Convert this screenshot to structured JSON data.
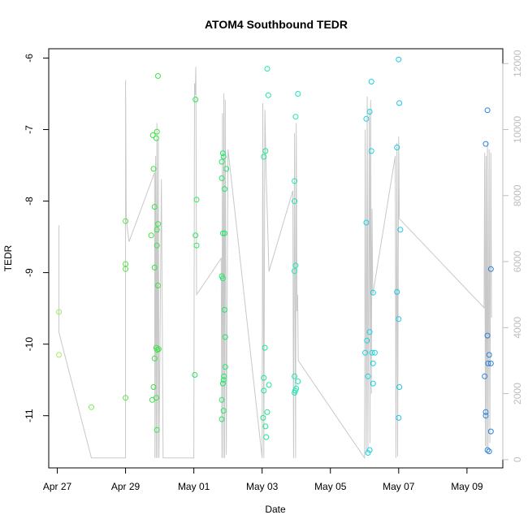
{
  "chart_data": {
    "type": "scatter",
    "title": "ATOM4 Southbound TEDR",
    "xlabel": "Date",
    "ylabel": "TEDR",
    "x_ticks": [
      "Apr 27",
      "Apr 29",
      "May 01",
      "May 03",
      "May 05",
      "May 07",
      "May 09"
    ],
    "x_tick_days": [
      0,
      2,
      4,
      6,
      8,
      10,
      12
    ],
    "xlim_days": [
      -0.25,
      13.05
    ],
    "y_ticks": [
      "-6",
      "-7",
      "-8",
      "-9",
      "-10",
      "-11"
    ],
    "y_tick_values": [
      -6,
      -7,
      -8,
      -9,
      -10,
      -11
    ],
    "ylim": [
      -11.73,
      -5.87
    ],
    "y2_ticks": [
      "0",
      "2000",
      "4000",
      "6000",
      "8000",
      "10000",
      "12000"
    ],
    "y2_tick_values": [
      0,
      2000,
      4000,
      6000,
      8000,
      10000,
      12000
    ],
    "y2lim": [
      -250,
      12450
    ],
    "grid": false,
    "colors": {
      "line": "#c8c8c8",
      "axis": "#000000",
      "right_axis": "#bdbdbd",
      "point_gradient": [
        "#9ef15a",
        "#3be43b",
        "#20e86c",
        "#18e6d0",
        "#19c5e8",
        "#2a7fd9"
      ]
    },
    "points": [
      {
        "x": 0.05,
        "y": -9.55
      },
      {
        "x": 0.05,
        "y": -10.15
      },
      {
        "x": 1.0,
        "y": -10.88
      },
      {
        "x": 2.0,
        "y": -8.28
      },
      {
        "x": 2.0,
        "y": -8.88
      },
      {
        "x": 2.0,
        "y": -8.95
      },
      {
        "x": 2.0,
        "y": -10.75
      },
      {
        "x": 2.75,
        "y": -8.48
      },
      {
        "x": 2.8,
        "y": -7.08
      },
      {
        "x": 2.82,
        "y": -7.55
      },
      {
        "x": 2.85,
        "y": -8.08
      },
      {
        "x": 2.85,
        "y": -8.93
      },
      {
        "x": 2.85,
        "y": -10.2
      },
      {
        "x": 2.82,
        "y": -10.6
      },
      {
        "x": 2.78,
        "y": -10.78
      },
      {
        "x": 2.9,
        "y": -7.12
      },
      {
        "x": 2.92,
        "y": -7.03
      },
      {
        "x": 2.95,
        "y": -6.25
      },
      {
        "x": 2.92,
        "y": -8.4
      },
      {
        "x": 2.95,
        "y": -8.32
      },
      {
        "x": 2.92,
        "y": -8.62
      },
      {
        "x": 2.95,
        "y": -9.18
      },
      {
        "x": 2.9,
        "y": -10.05
      },
      {
        "x": 2.93,
        "y": -10.08
      },
      {
        "x": 2.97,
        "y": -10.07
      },
      {
        "x": 2.9,
        "y": -10.75
      },
      {
        "x": 2.92,
        "y": -11.2
      },
      {
        "x": 4.05,
        "y": -6.58
      },
      {
        "x": 4.08,
        "y": -7.98
      },
      {
        "x": 4.05,
        "y": -8.48
      },
      {
        "x": 4.08,
        "y": -8.62
      },
      {
        "x": 4.03,
        "y": -10.43
      },
      {
        "x": 4.85,
        "y": -7.33
      },
      {
        "x": 4.82,
        "y": -7.45
      },
      {
        "x": 4.87,
        "y": -7.38
      },
      {
        "x": 4.82,
        "y": -7.68
      },
      {
        "x": 4.95,
        "y": -7.55
      },
      {
        "x": 4.9,
        "y": -7.83
      },
      {
        "x": 4.85,
        "y": -8.45
      },
      {
        "x": 4.9,
        "y": -8.45
      },
      {
        "x": 4.82,
        "y": -9.05
      },
      {
        "x": 4.85,
        "y": -9.08
      },
      {
        "x": 4.9,
        "y": -9.52
      },
      {
        "x": 4.92,
        "y": -9.9
      },
      {
        "x": 4.92,
        "y": -10.32
      },
      {
        "x": 4.88,
        "y": -10.45
      },
      {
        "x": 4.87,
        "y": -10.5
      },
      {
        "x": 4.85,
        "y": -10.55
      },
      {
        "x": 4.82,
        "y": -10.78
      },
      {
        "x": 4.87,
        "y": -10.93
      },
      {
        "x": 4.82,
        "y": -11.05
      },
      {
        "x": 6.15,
        "y": -6.15
      },
      {
        "x": 6.18,
        "y": -6.52
      },
      {
        "x": 6.1,
        "y": -7.3
      },
      {
        "x": 6.05,
        "y": -7.38
      },
      {
        "x": 6.08,
        "y": -10.05
      },
      {
        "x": 6.05,
        "y": -10.47
      },
      {
        "x": 6.2,
        "y": -10.57
      },
      {
        "x": 6.05,
        "y": -10.65
      },
      {
        "x": 6.15,
        "y": -10.95
      },
      {
        "x": 6.03,
        "y": -11.03
      },
      {
        "x": 6.1,
        "y": -11.15
      },
      {
        "x": 6.12,
        "y": -11.3
      },
      {
        "x": 7.05,
        "y": -6.5
      },
      {
        "x": 6.98,
        "y": -6.82
      },
      {
        "x": 6.95,
        "y": -7.72
      },
      {
        "x": 6.95,
        "y": -8.0
      },
      {
        "x": 6.98,
        "y": -8.9
      },
      {
        "x": 6.95,
        "y": -8.98
      },
      {
        "x": 6.95,
        "y": -10.45
      },
      {
        "x": 7.05,
        "y": -10.52
      },
      {
        "x": 7.0,
        "y": -10.62
      },
      {
        "x": 6.97,
        "y": -10.65
      },
      {
        "x": 6.95,
        "y": -10.68
      },
      {
        "x": 10.0,
        "y": -6.02
      },
      {
        "x": 9.2,
        "y": -6.33
      },
      {
        "x": 9.15,
        "y": -6.75
      },
      {
        "x": 9.05,
        "y": -6.85
      },
      {
        "x": 10.02,
        "y": -6.63
      },
      {
        "x": 9.2,
        "y": -7.3
      },
      {
        "x": 9.95,
        "y": -7.25
      },
      {
        "x": 9.05,
        "y": -8.3
      },
      {
        "x": 10.05,
        "y": -8.4
      },
      {
        "x": 9.25,
        "y": -9.28
      },
      {
        "x": 9.95,
        "y": -9.27
      },
      {
        "x": 10.0,
        "y": -9.65
      },
      {
        "x": 9.15,
        "y": -9.83
      },
      {
        "x": 9.07,
        "y": -9.95
      },
      {
        "x": 9.02,
        "y": -10.12
      },
      {
        "x": 9.22,
        "y": -10.12
      },
      {
        "x": 9.3,
        "y": -10.12
      },
      {
        "x": 9.25,
        "y": -10.27
      },
      {
        "x": 9.1,
        "y": -10.45
      },
      {
        "x": 9.25,
        "y": -10.55
      },
      {
        "x": 10.02,
        "y": -10.6
      },
      {
        "x": 10.0,
        "y": -11.03
      },
      {
        "x": 9.15,
        "y": -11.48
      },
      {
        "x": 9.1,
        "y": -11.52
      },
      {
        "x": 12.6,
        "y": -6.73
      },
      {
        "x": 12.55,
        "y": -7.2
      },
      {
        "x": 12.7,
        "y": -8.95
      },
      {
        "x": 12.6,
        "y": -9.88
      },
      {
        "x": 12.65,
        "y": -10.15
      },
      {
        "x": 12.62,
        "y": -10.27
      },
      {
        "x": 12.7,
        "y": -10.27
      },
      {
        "x": 12.52,
        "y": -10.45
      },
      {
        "x": 12.55,
        "y": -10.95
      },
      {
        "x": 12.55,
        "y": -11.0
      },
      {
        "x": 12.7,
        "y": -11.22
      },
      {
        "x": 12.6,
        "y": -11.48
      },
      {
        "x": 12.65,
        "y": -11.5
      }
    ],
    "line_series_y2": [
      {
        "x": 0.05,
        "y": 7100
      },
      {
        "x": 0.05,
        "y": 3850
      },
      {
        "x": 1.0,
        "y": 50
      },
      {
        "x": 2.0,
        "y": 50
      },
      {
        "x": 2.0,
        "y": 11500
      },
      {
        "x": 2.02,
        "y": 7300
      },
      {
        "x": 2.1,
        "y": 6600
      },
      {
        "x": 2.85,
        "y": 8700
      },
      {
        "x": 2.86,
        "y": 50
      },
      {
        "x": 2.88,
        "y": 9200
      },
      {
        "x": 2.9,
        "y": 50
      },
      {
        "x": 2.92,
        "y": 10200
      },
      {
        "x": 2.94,
        "y": 50
      },
      {
        "x": 2.96,
        "y": 9700
      },
      {
        "x": 2.98,
        "y": 50
      },
      {
        "x": 3.05,
        "y": 8500
      },
      {
        "x": 3.1,
        "y": 50
      },
      {
        "x": 4.0,
        "y": 50
      },
      {
        "x": 4.02,
        "y": 11400
      },
      {
        "x": 4.04,
        "y": 11050
      },
      {
        "x": 4.06,
        "y": 11900
      },
      {
        "x": 4.08,
        "y": 5000
      },
      {
        "x": 4.15,
        "y": 5100
      },
      {
        "x": 4.8,
        "y": 6100
      },
      {
        "x": 4.82,
        "y": 50
      },
      {
        "x": 4.84,
        "y": 10500
      },
      {
        "x": 4.86,
        "y": 50
      },
      {
        "x": 4.88,
        "y": 11100
      },
      {
        "x": 4.9,
        "y": 50
      },
      {
        "x": 4.92,
        "y": 10900
      },
      {
        "x": 4.95,
        "y": 150
      },
      {
        "x": 5.0,
        "y": 9400
      },
      {
        "x": 6.0,
        "y": 50
      },
      {
        "x": 6.02,
        "y": 10800
      },
      {
        "x": 6.05,
        "y": 50
      },
      {
        "x": 6.08,
        "y": 10600
      },
      {
        "x": 6.12,
        "y": 8600
      },
      {
        "x": 6.2,
        "y": 5700
      },
      {
        "x": 6.9,
        "y": 8150
      },
      {
        "x": 6.92,
        "y": 50
      },
      {
        "x": 6.95,
        "y": 9900
      },
      {
        "x": 6.98,
        "y": 50
      },
      {
        "x": 7.0,
        "y": 10200
      },
      {
        "x": 7.02,
        "y": 4500
      },
      {
        "x": 7.04,
        "y": 5000
      },
      {
        "x": 7.06,
        "y": 3000
      },
      {
        "x": 9.0,
        "y": 50
      },
      {
        "x": 9.02,
        "y": 10000
      },
      {
        "x": 9.05,
        "y": 200
      },
      {
        "x": 9.08,
        "y": 11000
      },
      {
        "x": 9.1,
        "y": 300
      },
      {
        "x": 9.14,
        "y": 10600
      },
      {
        "x": 9.16,
        "y": 500
      },
      {
        "x": 9.18,
        "y": 10900
      },
      {
        "x": 9.2,
        "y": 2000
      },
      {
        "x": 9.22,
        "y": 7600
      },
      {
        "x": 9.24,
        "y": 5000
      },
      {
        "x": 9.9,
        "y": 9200
      },
      {
        "x": 9.92,
        "y": 50
      },
      {
        "x": 9.95,
        "y": 9600
      },
      {
        "x": 9.97,
        "y": 100
      },
      {
        "x": 10.0,
        "y": 9800
      },
      {
        "x": 10.02,
        "y": 7300
      },
      {
        "x": 12.5,
        "y": 4600
      },
      {
        "x": 12.52,
        "y": 9300
      },
      {
        "x": 12.54,
        "y": 400
      },
      {
        "x": 12.56,
        "y": 9200
      },
      {
        "x": 12.58,
        "y": 200
      },
      {
        "x": 12.6,
        "y": 9600
      },
      {
        "x": 12.62,
        "y": 300
      },
      {
        "x": 12.65,
        "y": 9400
      },
      {
        "x": 12.67,
        "y": 500
      },
      {
        "x": 12.7,
        "y": 9300
      },
      {
        "x": 12.72,
        "y": 4300
      }
    ]
  }
}
